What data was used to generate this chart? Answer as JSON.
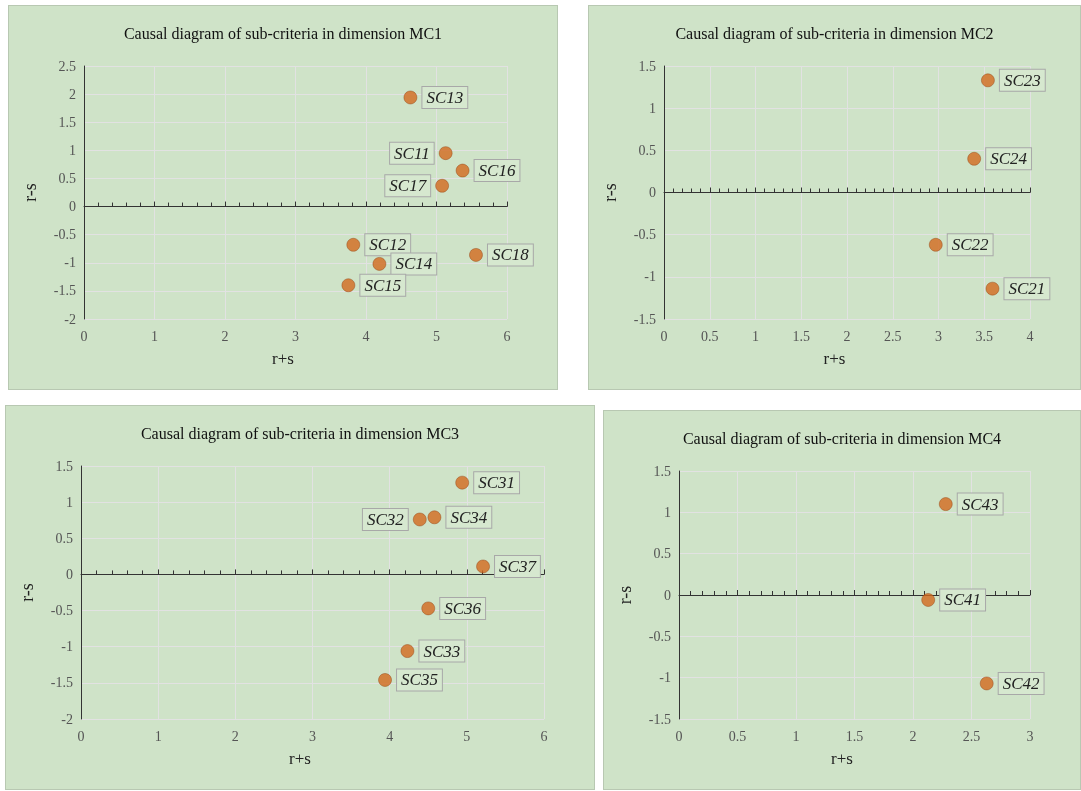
{
  "chart_data": [
    {
      "type": "scatter",
      "title": "Causal diagram of sub-criteria in dimension MC1",
      "xlabel": "r+s",
      "ylabel": "r-s",
      "x": [
        4.63,
        5.13,
        5.37,
        5.08,
        3.82,
        4.19,
        3.75,
        5.56
      ],
      "values": [
        1.94,
        0.95,
        0.64,
        0.37,
        -0.68,
        -1.02,
        -1.4,
        -0.86
      ],
      "color": "#d2691e",
      "marker": "circle",
      "grid": true,
      "xlim": [
        0,
        6
      ],
      "xticks": [
        0,
        1,
        2,
        3,
        4,
        5,
        6
      ],
      "ylim": [
        -2,
        2.5
      ],
      "yticks": [
        -2,
        -1.5,
        -1,
        -0.5,
        0,
        0.5,
        1,
        1.5,
        2,
        2.5
      ],
      "annotations": [
        {
          "text": "SC13",
          "x": 4.63,
          "y": 1.94
        },
        {
          "text": "SC11",
          "x": 5.13,
          "y": 0.95
        },
        {
          "text": "SC16",
          "x": 5.37,
          "y": 0.64
        },
        {
          "text": "SC17",
          "x": 5.08,
          "y": 0.37
        },
        {
          "text": "SC12",
          "x": 3.82,
          "y": -0.68
        },
        {
          "text": "SC14",
          "x": 4.19,
          "y": -1.02
        },
        {
          "text": "SC15",
          "x": 3.75,
          "y": -1.4
        },
        {
          "text": "SC18",
          "x": 5.56,
          "y": -0.86
        }
      ]
    },
    {
      "type": "scatter",
      "title": "Causal diagram of sub-criteria in dimension MC2",
      "xlabel": "r+s",
      "ylabel": "r-s",
      "x": [
        3.54,
        3.39,
        2.97,
        3.59
      ],
      "values": [
        1.33,
        0.4,
        -0.62,
        -1.14
      ],
      "color": "#d2691e",
      "marker": "circle",
      "grid": true,
      "xlim": [
        0,
        4
      ],
      "xticks": [
        0,
        0.5,
        1,
        1.5,
        2,
        2.5,
        3,
        3.5,
        4
      ],
      "ylim": [
        -1.5,
        1.5
      ],
      "yticks": [
        -1.5,
        -1,
        -0.5,
        0,
        0.5,
        1,
        1.5
      ],
      "annotations": [
        {
          "text": "SC23",
          "x": 3.54,
          "y": 1.33
        },
        {
          "text": "SC24",
          "x": 3.39,
          "y": 0.4
        },
        {
          "text": "SC22",
          "x": 2.97,
          "y": -0.62
        },
        {
          "text": "SC21",
          "x": 3.59,
          "y": -1.14
        }
      ]
    },
    {
      "type": "scatter",
      "title": "Causal diagram of sub-criteria in dimension MC3",
      "xlabel": "r+s",
      "ylabel": "r-s",
      "x": [
        4.94,
        4.39,
        4.58,
        5.21,
        4.5,
        4.23,
        3.94
      ],
      "values": [
        1.27,
        0.76,
        0.79,
        0.11,
        -0.47,
        -1.06,
        -1.46
      ],
      "color": "#d2691e",
      "marker": "circle",
      "grid": true,
      "xlim": [
        0,
        6
      ],
      "xticks": [
        0,
        1,
        2,
        3,
        4,
        5,
        6
      ],
      "ylim": [
        -2,
        1.5
      ],
      "yticks": [
        -2,
        -1.5,
        -1,
        -0.5,
        0,
        0.5,
        1,
        1.5
      ],
      "annotations": [
        {
          "text": "SC31",
          "x": 4.94,
          "y": 1.27
        },
        {
          "text": "SC32",
          "x": 4.39,
          "y": 0.76
        },
        {
          "text": "SC34",
          "x": 4.58,
          "y": 0.79
        },
        {
          "text": "SC37",
          "x": 5.21,
          "y": 0.11
        },
        {
          "text": "SC36",
          "x": 4.5,
          "y": -0.47
        },
        {
          "text": "SC33",
          "x": 4.23,
          "y": -1.06
        },
        {
          "text": "SC35",
          "x": 3.94,
          "y": -1.46
        }
      ]
    },
    {
      "type": "scatter",
      "title": "Causal diagram of sub-criteria in dimension MC4",
      "xlabel": "r+s",
      "ylabel": "r-s",
      "x": [
        2.28,
        2.13,
        2.63
      ],
      "values": [
        1.1,
        -0.06,
        -1.07
      ],
      "color": "#d2691e",
      "marker": "circle",
      "grid": true,
      "xlim": [
        0,
        3
      ],
      "xticks": [
        0,
        0.5,
        1,
        1.5,
        2,
        2.5,
        3
      ],
      "ylim": [
        -1.5,
        1.5
      ],
      "yticks": [
        -1.5,
        -1,
        -0.5,
        0,
        0.5,
        1,
        1.5
      ],
      "annotations": [
        {
          "text": "SC43",
          "x": 2.28,
          "y": 1.1
        },
        {
          "text": "SC41",
          "x": 2.13,
          "y": -0.06
        },
        {
          "text": "SC42",
          "x": 2.63,
          "y": -1.07
        }
      ]
    }
  ]
}
